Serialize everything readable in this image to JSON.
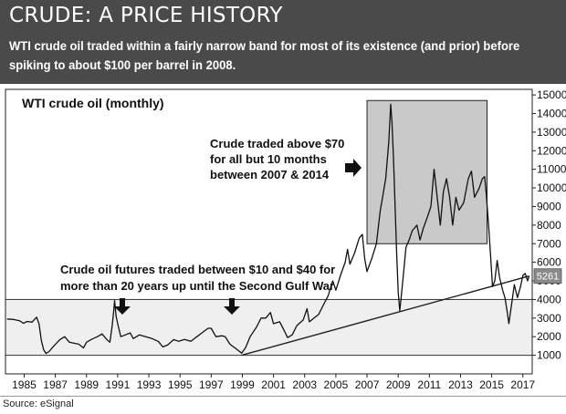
{
  "banner": {
    "title": "CRUDE: A PRICE HISTORY",
    "subtitle": "WTI crude oil traded within a fairly narrow band for most of its existence (and prior) before spiking to about $100 per barrel in 2008."
  },
  "source": "Source: eSignal",
  "colors": {
    "banner_bg": "#4a4a4a",
    "price_line": "#111111",
    "shaded_box": "#c9c9c9",
    "band_fill": "#efefef",
    "last_price_badge": "#8a8a8a"
  },
  "chart_data": {
    "type": "line",
    "title": "WTI crude oil (monthly)",
    "xlabel": "",
    "ylabel": "",
    "x_ticks": [
      "1985",
      "1987",
      "1989",
      "1991",
      "1993",
      "1995",
      "1997",
      "1999",
      "2001",
      "2003",
      "2005",
      "2007",
      "2009",
      "2011",
      "2013",
      "2015",
      "2017"
    ],
    "y_ticks": [
      "1000",
      "2000",
      "3000",
      "4000",
      "5000",
      "6000",
      "7000",
      "8000",
      "9000",
      "10000",
      "11000",
      "12000",
      "13000",
      "14000",
      "15000"
    ],
    "xlim": [
      1983.8,
      2017.6
    ],
    "ylim": [
      0,
      15300
    ],
    "grid": false,
    "last_price_label": "5261",
    "series": [
      {
        "values": [
          [
            1983.9,
            2950
          ],
          [
            1984.3,
            2930
          ],
          [
            1984.7,
            2860
          ],
          [
            1984.95,
            2720
          ],
          [
            1985.2,
            2820
          ],
          [
            1985.5,
            2780
          ],
          [
            1985.8,
            3050
          ],
          [
            1985.95,
            2700
          ],
          [
            1986.1,
            1800
          ],
          [
            1986.25,
            1300
          ],
          [
            1986.4,
            1100
          ],
          [
            1986.6,
            1200
          ],
          [
            1986.9,
            1500
          ],
          [
            1987.3,
            1850
          ],
          [
            1987.6,
            2000
          ],
          [
            1987.9,
            1700
          ],
          [
            1988.2,
            1650
          ],
          [
            1988.5,
            1600
          ],
          [
            1988.8,
            1400
          ],
          [
            1989.0,
            1700
          ],
          [
            1989.3,
            1850
          ],
          [
            1989.7,
            2000
          ],
          [
            1990.0,
            2150
          ],
          [
            1990.3,
            1850
          ],
          [
            1990.5,
            1700
          ],
          [
            1990.65,
            2600
          ],
          [
            1990.75,
            3400
          ],
          [
            1990.8,
            3950
          ],
          [
            1990.9,
            3100
          ],
          [
            1991.0,
            2700
          ],
          [
            1991.2,
            2000
          ],
          [
            1991.5,
            2100
          ],
          [
            1991.8,
            2200
          ],
          [
            1992.0,
            1900
          ],
          [
            1992.4,
            2100
          ],
          [
            1992.8,
            2000
          ],
          [
            1993.2,
            1900
          ],
          [
            1993.6,
            1750
          ],
          [
            1993.9,
            1450
          ],
          [
            1994.2,
            1550
          ],
          [
            1994.6,
            1850
          ],
          [
            1994.9,
            1750
          ],
          [
            1995.3,
            1850
          ],
          [
            1995.7,
            1750
          ],
          [
            1996.0,
            1950
          ],
          [
            1996.4,
            2200
          ],
          [
            1996.8,
            2450
          ],
          [
            1997.0,
            2450
          ],
          [
            1997.3,
            2000
          ],
          [
            1997.7,
            2050
          ],
          [
            1997.9,
            2000
          ],
          [
            1998.2,
            1600
          ],
          [
            1998.6,
            1350
          ],
          [
            1998.95,
            1120
          ],
          [
            1999.2,
            1400
          ],
          [
            1999.5,
            2000
          ],
          [
            1999.9,
            2500
          ],
          [
            2000.2,
            3000
          ],
          [
            2000.5,
            3000
          ],
          [
            2000.8,
            3300
          ],
          [
            2001.0,
            2700
          ],
          [
            2001.4,
            2800
          ],
          [
            2001.7,
            2300
          ],
          [
            2001.9,
            1950
          ],
          [
            2002.2,
            2100
          ],
          [
            2002.5,
            2600
          ],
          [
            2002.9,
            2900
          ],
          [
            2003.15,
            3500
          ],
          [
            2003.3,
            2800
          ],
          [
            2003.6,
            3000
          ],
          [
            2003.9,
            3200
          ],
          [
            2004.2,
            3700
          ],
          [
            2004.5,
            4200
          ],
          [
            2004.8,
            5000
          ],
          [
            2005.0,
            4500
          ],
          [
            2005.3,
            5300
          ],
          [
            2005.6,
            6000
          ],
          [
            2005.75,
            6700
          ],
          [
            2005.9,
            5900
          ],
          [
            2006.2,
            6500
          ],
          [
            2006.5,
            7300
          ],
          [
            2006.7,
            7500
          ],
          [
            2006.85,
            6200
          ],
          [
            2007.0,
            5500
          ],
          [
            2007.3,
            6200
          ],
          [
            2007.6,
            7000
          ],
          [
            2007.85,
            8800
          ],
          [
            2008.0,
            9500
          ],
          [
            2008.2,
            10500
          ],
          [
            2008.4,
            12500
          ],
          [
            2008.52,
            14500
          ],
          [
            2008.6,
            13500
          ],
          [
            2008.7,
            11500
          ],
          [
            2008.8,
            9000
          ],
          [
            2008.9,
            6500
          ],
          [
            2009.0,
            4400
          ],
          [
            2009.1,
            3400
          ],
          [
            2009.2,
            4200
          ],
          [
            2009.35,
            5500
          ],
          [
            2009.5,
            6800
          ],
          [
            2009.7,
            7200
          ],
          [
            2009.9,
            7700
          ],
          [
            2010.2,
            8000
          ],
          [
            2010.4,
            7200
          ],
          [
            2010.6,
            7800
          ],
          [
            2010.9,
            8500
          ],
          [
            2011.1,
            9000
          ],
          [
            2011.3,
            11000
          ],
          [
            2011.5,
            9500
          ],
          [
            2011.7,
            8000
          ],
          [
            2011.9,
            9800
          ],
          [
            2012.1,
            10500
          ],
          [
            2012.3,
            9500
          ],
          [
            2012.5,
            8000
          ],
          [
            2012.7,
            9500
          ],
          [
            2012.9,
            8800
          ],
          [
            2013.2,
            9200
          ],
          [
            2013.5,
            10500
          ],
          [
            2013.7,
            10900
          ],
          [
            2013.9,
            9500
          ],
          [
            2014.2,
            10000
          ],
          [
            2014.4,
            10500
          ],
          [
            2014.55,
            10600
          ],
          [
            2014.65,
            9700
          ],
          [
            2014.8,
            8000
          ],
          [
            2014.92,
            6500
          ],
          [
            2015.05,
            4700
          ],
          [
            2015.2,
            5000
          ],
          [
            2015.35,
            6100
          ],
          [
            2015.5,
            5200
          ],
          [
            2015.7,
            4500
          ],
          [
            2015.85,
            4100
          ],
          [
            2016.0,
            3300
          ],
          [
            2016.1,
            2700
          ],
          [
            2016.25,
            3600
          ],
          [
            2016.45,
            4800
          ],
          [
            2016.65,
            4100
          ],
          [
            2016.85,
            4700
          ],
          [
            2017.0,
            5300
          ],
          [
            2017.15,
            5400
          ],
          [
            2017.3,
            5000
          ],
          [
            2017.4,
            5261
          ]
        ]
      }
    ],
    "shaded_region": {
      "x": [
        2007.0,
        2014.7
      ],
      "y": [
        7000,
        14700
      ]
    },
    "band": {
      "y": [
        1000,
        4000
      ]
    },
    "trendline": {
      "points": [
        [
          1998.95,
          1000
        ],
        [
          2017.4,
          5261
        ]
      ]
    },
    "annotations": [
      {
        "text": "Crude traded above $70",
        "line": 1
      },
      {
        "text": "for all but 10 months",
        "line": 2
      },
      {
        "text": "between 2007 & 2014",
        "line": 3
      },
      {
        "text": "Crude oil futures traded between $10 and $40 for",
        "line": 1
      },
      {
        "text": "more than 20 years up until the Second Gulf War",
        "line": 2
      }
    ]
  }
}
